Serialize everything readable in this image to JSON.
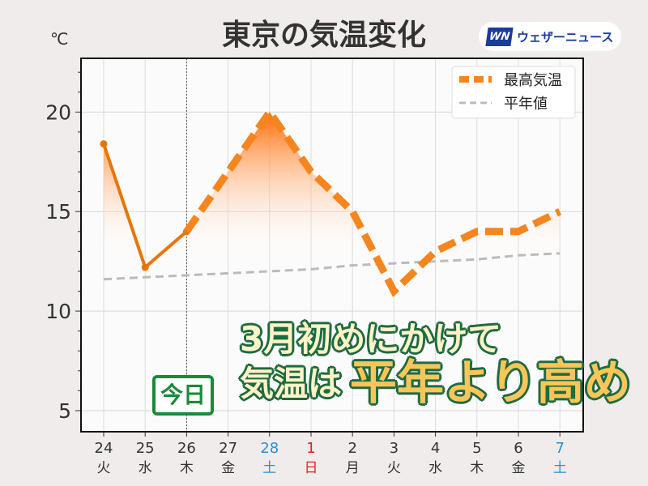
{
  "chart_data": {
    "type": "line",
    "title": "東京の気温変化",
    "ylabel": "℃",
    "ylim": [
      3.94,
      22.7
    ],
    "yticks": [
      5,
      10,
      15,
      20
    ],
    "grid": true,
    "legend_placement": "top-right",
    "categories": [
      {
        "day": "24",
        "weekday": "火",
        "color": "#333333"
      },
      {
        "day": "25",
        "weekday": "水",
        "color": "#333333"
      },
      {
        "day": "26",
        "weekday": "木",
        "color": "#333333"
      },
      {
        "day": "27",
        "weekday": "金",
        "color": "#333333"
      },
      {
        "day": "28",
        "weekday": "土",
        "color": "#2b8fd6"
      },
      {
        "day": "1",
        "weekday": "日",
        "color": "#e02020"
      },
      {
        "day": "2",
        "weekday": "月",
        "color": "#333333"
      },
      {
        "day": "3",
        "weekday": "火",
        "color": "#333333"
      },
      {
        "day": "4",
        "weekday": "水",
        "color": "#333333"
      },
      {
        "day": "5",
        "weekday": "木",
        "color": "#333333"
      },
      {
        "day": "6",
        "weekday": "金",
        "color": "#333333"
      },
      {
        "day": "7",
        "weekday": "土",
        "color": "#2b8fd6"
      }
    ],
    "today_index": 2,
    "series": [
      {
        "name": "最高気温",
        "values": [
          18.4,
          12.2,
          14,
          17,
          20,
          17,
          15,
          11,
          13,
          14,
          14,
          15
        ],
        "color": "#f5861f",
        "observed_color": "#e8750a"
      },
      {
        "name": "平年値",
        "values": [
          11.6,
          11.7,
          11.8,
          11.9,
          12.0,
          12.1,
          12.3,
          12.4,
          12.5,
          12.6,
          12.8,
          12.9
        ],
        "color": "#bbbbbb"
      }
    ]
  },
  "logo": {
    "mark": "WN",
    "text": "ウェザーニュース"
  },
  "annotation": {
    "line1": "3月初めにかけて",
    "line2a": "気温は",
    "line2b": "平年より高め",
    "today": "今日"
  }
}
